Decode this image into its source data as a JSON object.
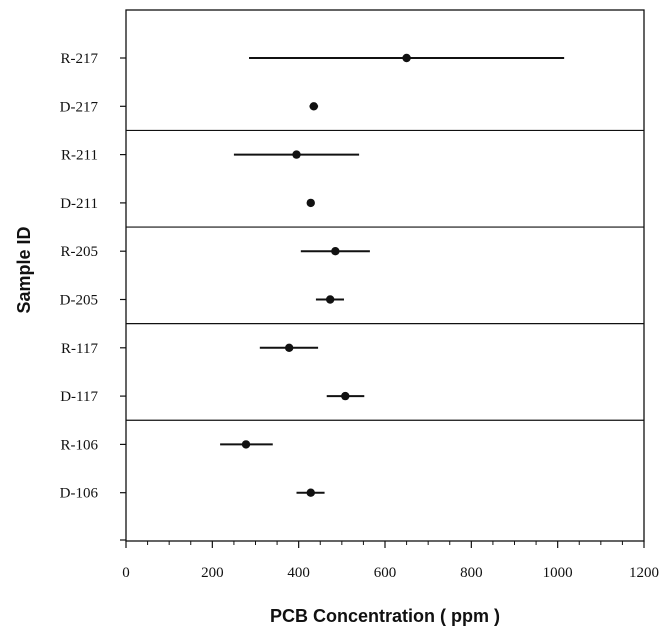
{
  "chart_data": {
    "type": "scatter",
    "title": "",
    "xlabel": "PCB Concentration ( ppm )",
    "ylabel": "Sample ID",
    "xlim": [
      0,
      1200
    ],
    "x_ticks": [
      "0",
      "200",
      "400",
      "600",
      "800",
      "1000",
      "1200"
    ],
    "grid": false,
    "series": [
      {
        "points": [
          {
            "id": "R-217",
            "x": 650,
            "low": 285,
            "high": 1015
          },
          {
            "id": "D-217",
            "x": 435,
            "low": 425,
            "high": 445
          },
          {
            "id": "R-211",
            "x": 395,
            "low": 250,
            "high": 540
          },
          {
            "id": "D-211",
            "x": 428,
            "low": 425,
            "high": 432
          },
          {
            "id": "R-205",
            "x": 485,
            "low": 405,
            "high": 565
          },
          {
            "id": "D-205",
            "x": 473,
            "low": 440,
            "high": 505
          },
          {
            "id": "R-117",
            "x": 378,
            "low": 310,
            "high": 445
          },
          {
            "id": "D-117",
            "x": 508,
            "low": 465,
            "high": 552
          },
          {
            "id": "R-106",
            "x": 278,
            "low": 218,
            "high": 340
          },
          {
            "id": "D-106",
            "x": 428,
            "low": 395,
            "high": 460
          }
        ]
      }
    ],
    "groups": [
      [
        "R-217",
        "D-217"
      ],
      [
        "R-211",
        "D-211"
      ],
      [
        "R-205",
        "D-205"
      ],
      [
        "R-117",
        "D-117"
      ],
      [
        "R-106",
        "D-106"
      ]
    ],
    "dot_color": "#111111"
  }
}
